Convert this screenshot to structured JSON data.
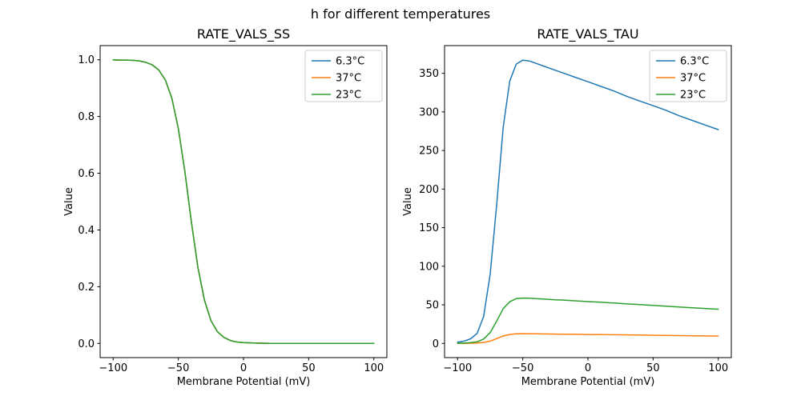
{
  "figure": {
    "suptitle": "h for different temperatures",
    "background": "#ffffff"
  },
  "colors": {
    "series_blue": "#1f77b4",
    "series_orange": "#ff7f0e",
    "series_green": "#2ca02c",
    "axes_frame": "#000000",
    "legend_border": "#cccccc"
  },
  "chart_data": [
    {
      "id": "rate_vals_ss",
      "type": "line",
      "title": "RATE_VALS_SS",
      "xlabel": "Membrane Potential (mV)",
      "ylabel": "Value",
      "xlim": [
        -110,
        110
      ],
      "ylim": [
        -0.05,
        1.05
      ],
      "grid": false,
      "legend_position": "upper right",
      "xticks": {
        "values": [
          -100,
          -50,
          0,
          50,
          100
        ],
        "labels": [
          "−100",
          "−50",
          "0",
          "50",
          "100"
        ]
      },
      "yticks": {
        "values": [
          0.0,
          0.2,
          0.4,
          0.6,
          0.8,
          1.0
        ],
        "labels": [
          "0.0",
          "0.2",
          "0.4",
          "0.6",
          "0.8",
          "1.0"
        ]
      },
      "x": [
        -100,
        -95,
        -90,
        -85,
        -80,
        -75,
        -70,
        -65,
        -60,
        -55,
        -50,
        -45,
        -40,
        -35,
        -30,
        -25,
        -20,
        -15,
        -10,
        -5,
        0,
        10,
        20,
        30,
        40,
        50,
        60,
        70,
        80,
        90,
        100
      ],
      "series": [
        {
          "name": "6.3°C",
          "color": "#1f77b4",
          "values": [
            1.0,
            0.999,
            0.999,
            0.998,
            0.996,
            0.991,
            0.982,
            0.964,
            0.929,
            0.865,
            0.758,
            0.606,
            0.429,
            0.269,
            0.153,
            0.081,
            0.041,
            0.021,
            0.01,
            0.005,
            0.003,
            0.001,
            0.0,
            0.0,
            0.0,
            0.0,
            0.0,
            0.0,
            0.0,
            0.0,
            0.0
          ]
        },
        {
          "name": "37°C",
          "color": "#ff7f0e",
          "values": [
            1.0,
            0.999,
            0.999,
            0.998,
            0.996,
            0.991,
            0.982,
            0.964,
            0.929,
            0.865,
            0.758,
            0.606,
            0.429,
            0.269,
            0.153,
            0.081,
            0.041,
            0.021,
            0.01,
            0.005,
            0.003,
            0.001,
            0.0,
            0.0,
            0.0,
            0.0,
            0.0,
            0.0,
            0.0,
            0.0,
            0.0
          ]
        },
        {
          "name": "23°C",
          "color": "#2ca02c",
          "values": [
            1.0,
            0.999,
            0.999,
            0.998,
            0.996,
            0.991,
            0.982,
            0.964,
            0.929,
            0.865,
            0.758,
            0.606,
            0.429,
            0.269,
            0.153,
            0.081,
            0.041,
            0.021,
            0.01,
            0.005,
            0.003,
            0.001,
            0.0,
            0.0,
            0.0,
            0.0,
            0.0,
            0.0,
            0.0,
            0.0,
            0.0
          ]
        }
      ],
      "series_overlap_note": "all three temperature curves coincide; green drawn last on top"
    },
    {
      "id": "rate_vals_tau",
      "type": "line",
      "title": "RATE_VALS_TAU",
      "xlabel": "Membrane Potential (mV)",
      "ylabel": "Value",
      "xlim": [
        -110,
        110
      ],
      "ylim": [
        -18.4,
        385.9
      ],
      "grid": false,
      "legend_position": "upper right",
      "xticks": {
        "values": [
          -100,
          -50,
          0,
          50,
          100
        ],
        "labels": [
          "−100",
          "−50",
          "0",
          "50",
          "100"
        ]
      },
      "yticks": {
        "values": [
          0,
          50,
          100,
          150,
          200,
          250,
          300,
          350
        ],
        "labels": [
          "0",
          "50",
          "100",
          "150",
          "200",
          "250",
          "300",
          "350"
        ]
      },
      "x": [
        -100,
        -95,
        -90,
        -85,
        -80,
        -75,
        -70,
        -65,
        -60,
        -55,
        -50,
        -45,
        -40,
        -35,
        -30,
        -25,
        -20,
        -15,
        -10,
        -5,
        0,
        10,
        20,
        30,
        40,
        50,
        60,
        70,
        80,
        90,
        100
      ],
      "series": [
        {
          "name": "6.3°C",
          "color": "#1f77b4",
          "values": [
            1.5,
            3,
            6,
            13,
            35,
            90,
            180,
            280,
            340,
            362,
            367,
            366,
            363,
            360,
            357,
            354,
            351,
            348,
            345,
            342,
            339,
            333,
            327,
            320,
            314,
            308,
            302,
            295,
            289,
            283,
            277
          ]
        },
        {
          "name": "37°C",
          "color": "#ff7f0e",
          "values": [
            0.1,
            0.1,
            0.2,
            0.5,
            1.2,
            3.1,
            6.2,
            9.6,
            11.6,
            12.4,
            12.6,
            12.5,
            12.4,
            12.3,
            12.2,
            12.1,
            12.0,
            11.9,
            11.8,
            11.7,
            11.6,
            11.4,
            11.2,
            11.0,
            10.8,
            10.5,
            10.3,
            10.1,
            9.9,
            9.7,
            9.5
          ]
        },
        {
          "name": "23°C",
          "color": "#2ca02c",
          "values": [
            0.2,
            0.5,
            1,
            2,
            5.6,
            14,
            29,
            45,
            54,
            58,
            58.7,
            58.6,
            58.1,
            57.6,
            57.1,
            56.6,
            56.2,
            55.7,
            55.2,
            54.7,
            54.2,
            53.3,
            52.3,
            51.2,
            50.2,
            49.3,
            48.3,
            47.2,
            46.2,
            45.3,
            44.3
          ]
        }
      ]
    }
  ]
}
